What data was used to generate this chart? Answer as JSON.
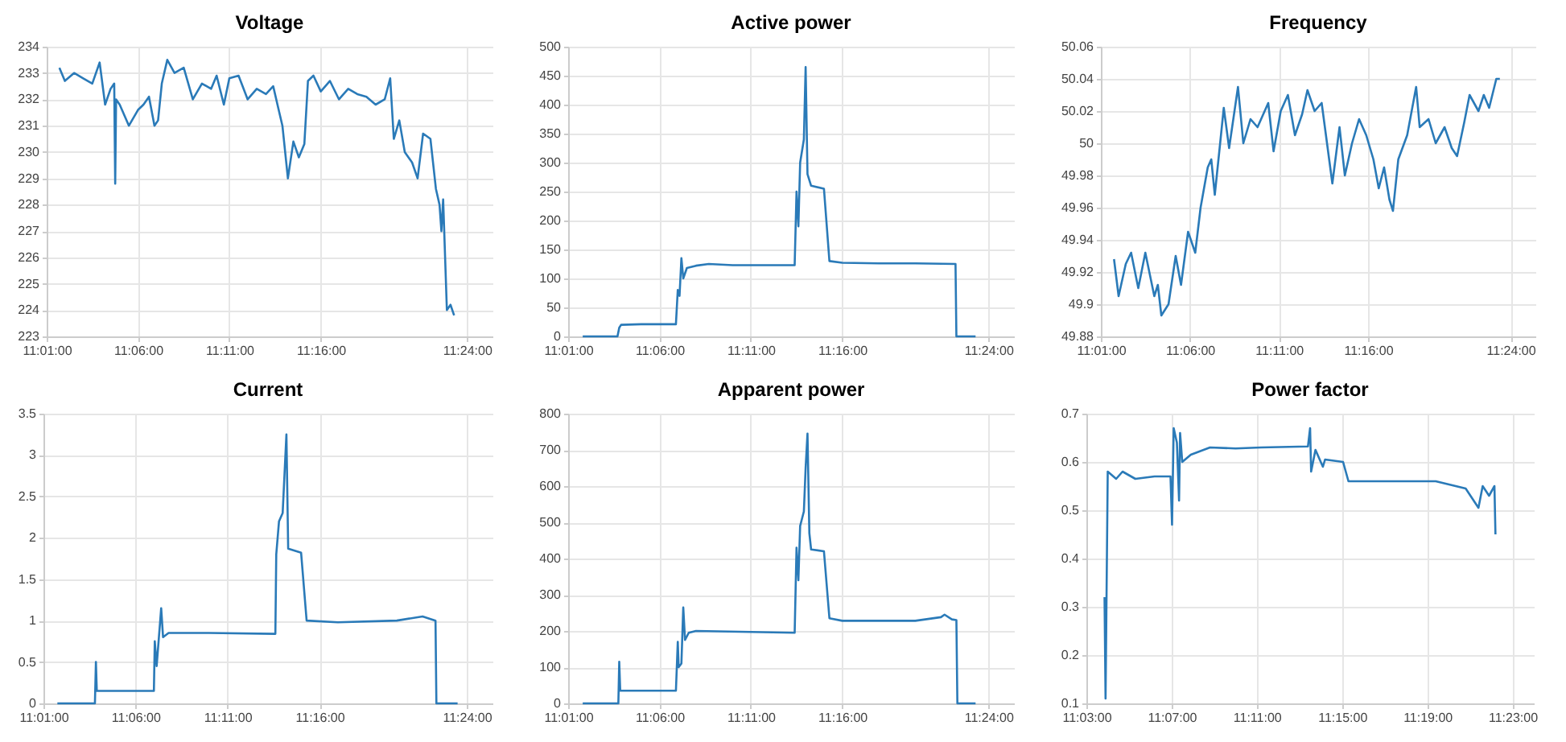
{
  "chart_data": [
    {
      "type": "line",
      "title": "Voltage",
      "color": "#2a7ab8",
      "grid": true,
      "xlim": [
        11.0167,
        11.4233
      ],
      "ylim": [
        223,
        234
      ],
      "xticks": [
        {
          "value": 11.0167,
          "label": "11:01:00"
        },
        {
          "value": 11.1,
          "label": "11:06:00"
        },
        {
          "value": 11.1833,
          "label": "11:11:00"
        },
        {
          "value": 11.2667,
          "label": "11:16:00"
        },
        {
          "value": 11.4,
          "label": "11:24:00"
        }
      ],
      "yticks": [
        223,
        224,
        225,
        226,
        227,
        228,
        229,
        230,
        231,
        232,
        233,
        234
      ],
      "x": [
        11.0283,
        11.0333,
        11.0417,
        11.05,
        11.0583,
        11.065,
        11.07,
        11.075,
        11.0783,
        11.0792,
        11.08,
        11.0833,
        11.0917,
        11.1,
        11.105,
        11.11,
        11.115,
        11.1183,
        11.1217,
        11.1267,
        11.1333,
        11.1417,
        11.15,
        11.1583,
        11.1667,
        11.1717,
        11.1783,
        11.1833,
        11.1917,
        11.2,
        11.2083,
        11.2167,
        11.2233,
        11.2283,
        11.2317,
        11.2367,
        11.2417,
        11.2467,
        11.2517,
        11.255,
        11.26,
        11.2667,
        11.275,
        11.2833,
        11.2917,
        11.3,
        11.3083,
        11.3167,
        11.325,
        11.33,
        11.3333,
        11.3383,
        11.3433,
        11.35,
        11.355,
        11.36,
        11.3667,
        11.3717,
        11.375,
        11.3767,
        11.3783,
        11.3817,
        11.385,
        11.3883
      ],
      "values": [
        233.2,
        232.7,
        233.0,
        232.8,
        232.6,
        233.4,
        231.8,
        232.4,
        232.6,
        228.8,
        232.0,
        231.8,
        231.0,
        231.6,
        231.8,
        232.1,
        231.0,
        231.2,
        232.6,
        233.5,
        233.0,
        233.2,
        232.0,
        232.6,
        232.4,
        232.9,
        231.8,
        232.8,
        232.9,
        232.0,
        232.4,
        232.2,
        232.5,
        231.6,
        231.0,
        229.0,
        230.4,
        229.8,
        230.3,
        232.7,
        232.9,
        232.3,
        232.7,
        232.0,
        232.4,
        232.2,
        232.1,
        231.8,
        232.0,
        232.8,
        230.5,
        231.2,
        230.0,
        229.6,
        229.0,
        230.7,
        230.5,
        228.6,
        228.0,
        227.0,
        228.2,
        224.0,
        224.2,
        223.8
      ]
    },
    {
      "type": "line",
      "title": "Active power",
      "color": "#2a7ab8",
      "grid": true,
      "xlim": [
        11.0167,
        11.4233
      ],
      "ylim": [
        0,
        500
      ],
      "xticks": [
        {
          "value": 11.0167,
          "label": "11:01:00"
        },
        {
          "value": 11.1,
          "label": "11:06:00"
        },
        {
          "value": 11.1833,
          "label": "11:11:00"
        },
        {
          "value": 11.2667,
          "label": "11:16:00"
        },
        {
          "value": 11.4,
          "label": "11:24:00"
        }
      ],
      "yticks": [
        0,
        50,
        100,
        150,
        200,
        250,
        300,
        350,
        400,
        450,
        500
      ],
      "x": [
        11.03,
        11.0617,
        11.0633,
        11.065,
        11.0833,
        11.115,
        11.1167,
        11.1183,
        11.12,
        11.1217,
        11.125,
        11.1333,
        11.145,
        11.1667,
        11.2,
        11.2233,
        11.225,
        11.2267,
        11.2283,
        11.2317,
        11.2333,
        11.235,
        11.2383,
        11.25,
        11.255,
        11.2667,
        11.3,
        11.3333,
        11.37,
        11.3708,
        11.3883
      ],
      "values": [
        0,
        0,
        15,
        20,
        21,
        21,
        80,
        70,
        135,
        100,
        118,
        122,
        125,
        123,
        123,
        123,
        250,
        190,
        300,
        340,
        465,
        280,
        260,
        255,
        130,
        127,
        126,
        126,
        125,
        0,
        0
      ]
    },
    {
      "type": "line",
      "title": "Frequency",
      "color": "#2a7ab8",
      "grid": true,
      "xlim": [
        11.0167,
        11.4233
      ],
      "ylim": [
        49.88,
        50.06
      ],
      "xticks": [
        {
          "value": 11.0167,
          "label": "11:01:00"
        },
        {
          "value": 11.1,
          "label": "11:06:00"
        },
        {
          "value": 11.1833,
          "label": "11:11:00"
        },
        {
          "value": 11.2667,
          "label": "11:16:00"
        },
        {
          "value": 11.4,
          "label": "11:24:00"
        }
      ],
      "yticks": [
        49.88,
        49.9,
        49.92,
        49.94,
        49.96,
        49.98,
        50,
        50.02,
        50.04,
        50.06
      ],
      "x": [
        11.029,
        11.0333,
        11.04,
        11.045,
        11.0517,
        11.0583,
        11.0667,
        11.07,
        11.0733,
        11.08,
        11.0867,
        11.0917,
        11.0983,
        11.105,
        11.11,
        11.1167,
        11.12,
        11.1233,
        11.1283,
        11.1317,
        11.1367,
        11.145,
        11.15,
        11.1567,
        11.1633,
        11.1733,
        11.1783,
        11.185,
        11.1917,
        11.1983,
        11.205,
        11.21,
        11.2167,
        11.2233,
        11.2333,
        11.24,
        11.245,
        11.2517,
        11.2583,
        11.265,
        11.2717,
        11.2767,
        11.2817,
        11.2867,
        11.29,
        11.295,
        11.3033,
        11.3117,
        11.315,
        11.3233,
        11.33,
        11.3383,
        11.345,
        11.35,
        11.3567,
        11.3617,
        11.37,
        11.375,
        11.38,
        11.3867,
        11.39
      ],
      "values": [
        49.928,
        49.905,
        49.925,
        49.932,
        49.91,
        49.932,
        49.905,
        49.912,
        49.893,
        49.9,
        49.93,
        49.912,
        49.945,
        49.932,
        49.96,
        49.985,
        49.99,
        49.968,
        50.0,
        50.022,
        49.997,
        50.035,
        50.0,
        50.015,
        50.01,
        50.025,
        49.995,
        50.02,
        50.03,
        50.005,
        50.018,
        50.033,
        50.02,
        50.025,
        49.975,
        50.01,
        49.98,
        50.0,
        50.015,
        50.005,
        49.99,
        49.972,
        49.985,
        49.965,
        49.958,
        49.99,
        50.005,
        50.035,
        50.01,
        50.015,
        50.0,
        50.01,
        49.997,
        49.992,
        50.013,
        50.03,
        50.02,
        50.03,
        50.022,
        50.04,
        50.04
      ]
    },
    {
      "type": "line",
      "title": "Current",
      "color": "#2a7ab8",
      "grid": true,
      "xlim": [
        11.0167,
        11.4233
      ],
      "ylim": [
        0,
        3.5
      ],
      "xticks": [
        {
          "value": 11.0167,
          "label": "11:01:00"
        },
        {
          "value": 11.1,
          "label": "11:06:00"
        },
        {
          "value": 11.1833,
          "label": "11:11:00"
        },
        {
          "value": 11.2667,
          "label": "11:16:00"
        },
        {
          "value": 11.4,
          "label": "11:24:00"
        }
      ],
      "yticks": [
        0,
        0.5,
        1,
        1.5,
        2,
        2.5,
        3,
        3.5
      ],
      "x": [
        11.0293,
        11.0633,
        11.0642,
        11.065,
        11.0833,
        11.1167,
        11.1175,
        11.1192,
        11.1233,
        11.125,
        11.13,
        11.1667,
        11.2267,
        11.2275,
        11.23,
        11.2333,
        11.2367,
        11.2383,
        11.25,
        11.255,
        11.2833,
        11.3367,
        11.36,
        11.3717,
        11.3725,
        11.3917
      ],
      "values": [
        0,
        0,
        0.5,
        0.15,
        0.15,
        0.15,
        0.75,
        0.45,
        1.15,
        0.8,
        0.85,
        0.85,
        0.84,
        1.8,
        2.2,
        2.3,
        3.25,
        1.87,
        1.82,
        1.0,
        0.98,
        1.0,
        1.05,
        1.0,
        0,
        0
      ]
    },
    {
      "type": "line",
      "title": "Apparent power",
      "color": "#2a7ab8",
      "grid": true,
      "xlim": [
        11.0167,
        11.4233
      ],
      "ylim": [
        0,
        800
      ],
      "xticks": [
        {
          "value": 11.0167,
          "label": "11:01:00"
        },
        {
          "value": 11.1,
          "label": "11:06:00"
        },
        {
          "value": 11.1833,
          "label": "11:11:00"
        },
        {
          "value": 11.2667,
          "label": "11:16:00"
        },
        {
          "value": 11.4,
          "label": "11:24:00"
        }
      ],
      "yticks": [
        0,
        100,
        200,
        300,
        400,
        500,
        600,
        700,
        800
      ],
      "x": [
        11.03,
        11.0625,
        11.0633,
        11.0642,
        11.0833,
        11.115,
        11.1167,
        11.1175,
        11.12,
        11.1217,
        11.1233,
        11.1267,
        11.1333,
        11.2233,
        11.225,
        11.2267,
        11.2283,
        11.2317,
        11.2333,
        11.235,
        11.2367,
        11.2383,
        11.25,
        11.255,
        11.2667,
        11.3333,
        11.3567,
        11.36,
        11.3667,
        11.3708,
        11.3717,
        11.3883
      ],
      "values": [
        0,
        0,
        115,
        35,
        35,
        35,
        170,
        100,
        110,
        265,
        175,
        195,
        200,
        195,
        430,
        340,
        490,
        530,
        650,
        745,
        470,
        425,
        420,
        235,
        228,
        228,
        238,
        245,
        232,
        230,
        0,
        0
      ]
    },
    {
      "type": "line",
      "title": "Power factor",
      "color": "#2a7ab8",
      "grid": true,
      "xlim": [
        11.05,
        11.4
      ],
      "ylim": [
        0.1,
        0.7
      ],
      "xticks": [
        {
          "value": 11.05,
          "label": "11:03:00"
        },
        {
          "value": 11.1167,
          "label": "11:07:00"
        },
        {
          "value": 11.1833,
          "label": "11:11:00"
        },
        {
          "value": 11.25,
          "label": "11:15:00"
        },
        {
          "value": 11.3167,
          "label": "11:19:00"
        },
        {
          "value": 11.3833,
          "label": "11:23:00"
        }
      ],
      "yticks": [
        0.1,
        0.2,
        0.3,
        0.4,
        0.5,
        0.6,
        0.7
      ],
      "x": [
        11.0642,
        11.065,
        11.0667,
        11.0733,
        11.0783,
        11.0883,
        11.1033,
        11.1158,
        11.117,
        11.1183,
        11.1208,
        11.1225,
        11.1233,
        11.125,
        11.1317,
        11.1467,
        11.1667,
        11.1867,
        11.2233,
        11.225,
        11.2258,
        11.2292,
        11.235,
        11.2367,
        11.2508,
        11.255,
        11.2833,
        11.3233,
        11.3467,
        11.3567,
        11.36,
        11.365,
        11.3692,
        11.37
      ],
      "values": [
        0.32,
        0.11,
        0.58,
        0.565,
        0.58,
        0.565,
        0.57,
        0.57,
        0.47,
        0.67,
        0.64,
        0.52,
        0.66,
        0.6,
        0.615,
        0.63,
        0.628,
        0.63,
        0.632,
        0.67,
        0.58,
        0.625,
        0.59,
        0.605,
        0.6,
        0.56,
        0.56,
        0.56,
        0.545,
        0.505,
        0.55,
        0.53,
        0.55,
        0.45
      ]
    }
  ]
}
